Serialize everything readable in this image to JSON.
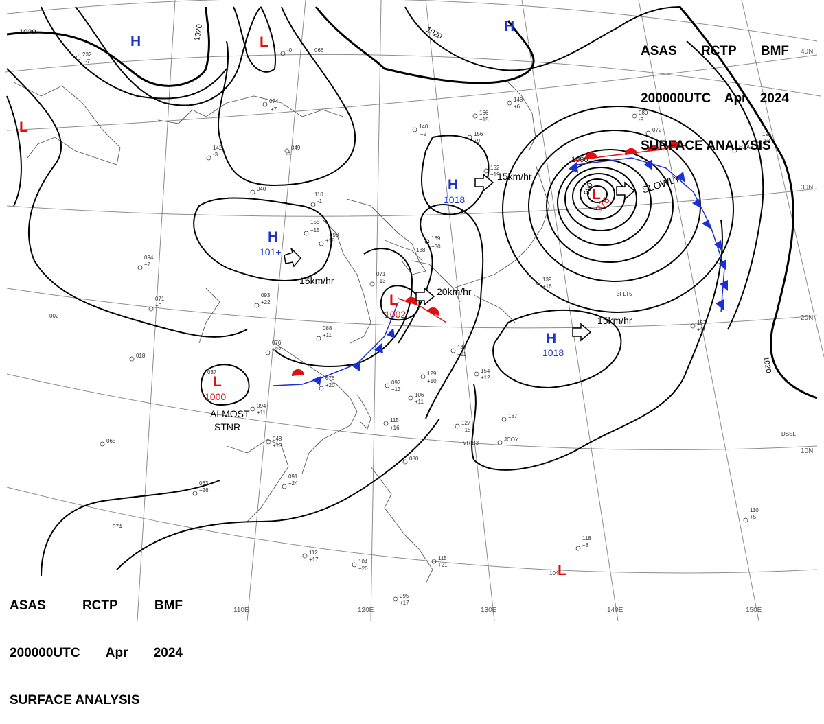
{
  "header": {
    "line1": [
      "ASAS",
      "RCTP",
      "BMF"
    ],
    "line2": [
      "200000UTC",
      "Apr",
      "2024"
    ],
    "line3": "SURFACE ANALYSIS"
  },
  "colors": {
    "high": "#1a33cc",
    "low": "#e01010",
    "isobar": "#000000",
    "grid": "#888888",
    "coast": "#555555",
    "cold_front": "#1a2fd6",
    "warm_front": "#e01010"
  },
  "graticule": {
    "lon_labels": [
      "110E",
      "120E",
      "130E",
      "140E",
      "150E"
    ],
    "lat_labels": [
      "40N",
      "30N",
      "20N",
      "10N"
    ]
  },
  "pressure_centers": [
    {
      "type": "H",
      "value": ""
    },
    {
      "type": "L",
      "value": ""
    },
    {
      "type": "L",
      "value": ""
    },
    {
      "type": "H",
      "value": "1018"
    },
    {
      "type": "H",
      "value": "101+"
    },
    {
      "type": "L",
      "value": "976"
    },
    {
      "type": "L",
      "value": "1002"
    },
    {
      "type": "L",
      "value": "1000"
    },
    {
      "type": "H",
      "value": "1018"
    },
    {
      "type": "H",
      "value": ""
    },
    {
      "type": "L",
      "value": ""
    }
  ],
  "isobar_labels": [
    "1020",
    "1020",
    "1020",
    "1020",
    "1000",
    "980"
  ],
  "motion_vectors": [
    {
      "label": "15km/hr"
    },
    {
      "label": "SLOWLY"
    },
    {
      "label": "15km/hr"
    },
    {
      "label": "20km/hr"
    },
    {
      "label": "15km/hr"
    }
  ],
  "remarks": [
    "ALMOST",
    "STNR"
  ],
  "station_texts": [
    "232",
    "-7",
    "-0",
    "066",
    "074",
    "+7",
    "049",
    "-3",
    "040",
    "110",
    "-1",
    "142",
    "-3",
    "155",
    "+15",
    "098",
    "+18",
    "094",
    "+7",
    "071",
    "+6",
    "093",
    "+22",
    "088",
    "+11",
    "076",
    "+22",
    "076",
    "+20",
    "071",
    "+13",
    "002",
    "018",
    "037",
    "094",
    "+11",
    "048",
    "+13",
    "065",
    "063",
    "+26",
    "091",
    "+24",
    "074",
    "140",
    "+2",
    "156",
    "+9",
    "152",
    "+19",
    "166",
    "+15",
    "148",
    "+6",
    "080",
    "-9",
    "072",
    "195",
    "-13",
    "138",
    "169",
    "+30",
    "139",
    "+16",
    "141",
    "+11",
    "129",
    "+10",
    "154",
    "+12",
    "157",
    "+11",
    "097",
    "+13",
    "106",
    "+11",
    "115",
    "+16",
    "127",
    "+15",
    "137",
    "110",
    "+5",
    "118",
    "+8",
    "104",
    "112",
    "+17",
    "104",
    "+20",
    "095",
    "+17",
    "115",
    "+21",
    "080",
    "VRIB3",
    "JCOY",
    "3FLT5",
    "HXA8",
    "DSSL"
  ]
}
